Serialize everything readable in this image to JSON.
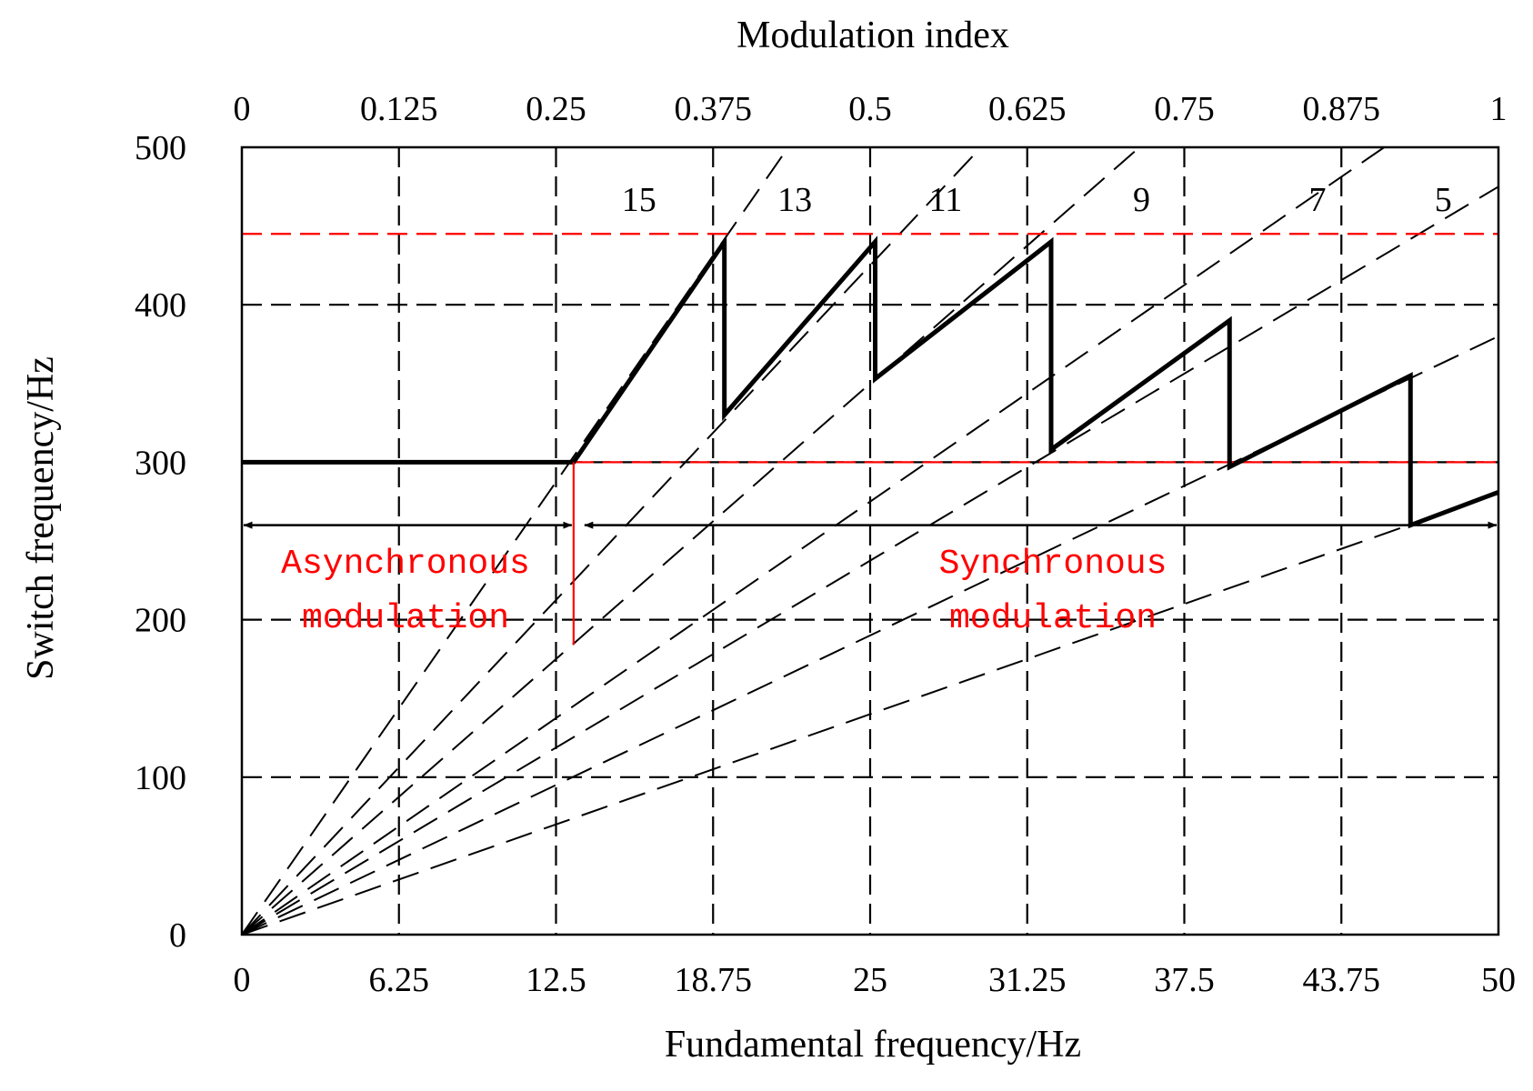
{
  "chart_data": {
    "type": "line",
    "xlabel": "Fundamental frequency/Hz",
    "ylabel": "Switch frequency/Hz",
    "top_xlabel": "Modulation index",
    "xlim": [
      0,
      50
    ],
    "ylim": [
      0,
      500
    ],
    "x_ticks": [
      "0",
      "6.25",
      "12.5",
      "18.75",
      "25",
      "31.25",
      "37.5",
      "43.75",
      "50"
    ],
    "x_tick_values": [
      0,
      6.25,
      12.5,
      18.75,
      25,
      31.25,
      37.5,
      43.75,
      50
    ],
    "top_ticks": [
      "0",
      "0.125",
      "0.25",
      "0.375",
      "0.5",
      "0.625",
      "0.75",
      "0.875",
      "1"
    ],
    "y_ticks": [
      "0",
      "100",
      "200",
      "300",
      "400",
      "500"
    ],
    "y_tick_values": [
      0,
      100,
      200,
      300,
      400,
      500
    ],
    "grid": true,
    "limits": {
      "upper": 445,
      "lower": 300
    },
    "async_sync_boundary": 13.2,
    "series": [
      {
        "name": "Switch frequency",
        "x": [
          0,
          13.2,
          19.2,
          19.2,
          25.2,
          25.2,
          32.2,
          32.2,
          39.3,
          39.3,
          46.5,
          46.5,
          50
        ],
        "y": [
          300,
          300,
          440,
          330,
          440,
          353,
          440,
          308,
          390,
          297,
          355,
          260,
          281
        ]
      }
    ],
    "rays": [
      {
        "label": "",
        "slope": 23
      },
      {
        "label": "15",
        "slope": 17
      },
      {
        "label": "13",
        "slope": 14
      },
      {
        "label": "11",
        "slope": 11
      },
      {
        "label": "9",
        "slope": 9.5
      },
      {
        "label": "7",
        "slope": 7.6
      },
      {
        "label": "5",
        "slope": 5.6
      }
    ],
    "ratio_labels": [
      {
        "text": "15",
        "x": 15.8
      },
      {
        "text": "13",
        "x": 22.0
      },
      {
        "text": "11",
        "x": 28.0
      },
      {
        "text": "9",
        "x": 35.8
      },
      {
        "text": "7",
        "x": 42.8
      },
      {
        "text": "5",
        "x": 47.8
      }
    ],
    "annotations": {
      "async_line1": "Asynchronous",
      "async_line2": "modulation",
      "sync_line1": "Synchronous",
      "sync_line2": "modulation"
    }
  }
}
